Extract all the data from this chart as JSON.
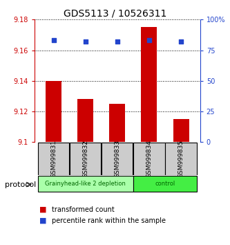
{
  "title": "GDS5113 / 10526311",
  "samples": [
    "GSM999831",
    "GSM999832",
    "GSM999833",
    "GSM999834",
    "GSM999835"
  ],
  "bar_values": [
    9.14,
    9.128,
    9.125,
    9.175,
    9.115
  ],
  "bar_base": 9.1,
  "percentile_values": [
    83,
    82,
    82,
    83,
    82
  ],
  "ylim_left": [
    9.1,
    9.18
  ],
  "ylim_right": [
    0,
    100
  ],
  "yticks_left": [
    9.1,
    9.12,
    9.14,
    9.16,
    9.18
  ],
  "yticks_right": [
    0,
    25,
    50,
    75,
    100
  ],
  "ytick_labels_left": [
    "9.1",
    "9.12",
    "9.14",
    "9.16",
    "9.18"
  ],
  "ytick_labels_right": [
    "0",
    "25",
    "50",
    "75",
    "100%"
  ],
  "bar_color": "#cc0000",
  "percentile_color": "#2244cc",
  "grid_color": "#000000",
  "group_labels": [
    "Grainyhead-like 2 depletion",
    "control"
  ],
  "group_ranges": [
    [
      0,
      3
    ],
    [
      3,
      5
    ]
  ],
  "group_colors": [
    "#aaffaa",
    "#44ee44"
  ],
  "protocol_label": "protocol",
  "legend_bar_label": "transformed count",
  "legend_pct_label": "percentile rank within the sample",
  "bg_color": "#ffffff",
  "label_area_color": "#cccccc",
  "bar_width": 0.5
}
